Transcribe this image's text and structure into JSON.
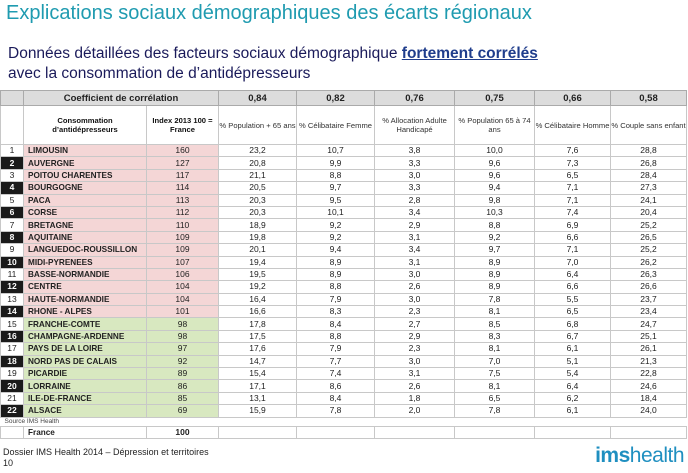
{
  "title": "Explications sociaux démographiques des écarts régionaux",
  "subtitle": {
    "line1_prefix": "Données détaillées des facteurs sociaux démographique ",
    "line1_highlight": "fortement corrélés",
    "line2": "avec la consommation de d’antidépresseurs"
  },
  "table": {
    "coef_label": "Coefficient de corrélation",
    "coefficients": [
      "0,84",
      "0,82",
      "0,76",
      "0,75",
      "0,66",
      "0,58"
    ],
    "header_name": "Consommation d’antidépresseurs",
    "header_index": "Index 2013 100 = France",
    "columns": [
      "% Population + 65 ans",
      "% Célibataire Femme",
      "% Allocation Adulte Handicapé",
      "% Population 65 à 74 ans",
      "% Célibataire Homme",
      "% Couple sans enfant"
    ],
    "rows": [
      {
        "rank": "1",
        "name": "LIMOUSIN",
        "index": "160",
        "vals": [
          "23,2",
          "10,7",
          "3,8",
          "10,0",
          "7,6",
          "28,8"
        ]
      },
      {
        "rank": "2",
        "name": "AUVERGNE",
        "index": "127",
        "vals": [
          "20,8",
          "9,9",
          "3,3",
          "9,6",
          "7,3",
          "26,8"
        ]
      },
      {
        "rank": "3",
        "name": "POITOU CHARENTES",
        "index": "117",
        "vals": [
          "21,1",
          "8,8",
          "3,0",
          "9,6",
          "6,5",
          "28,4"
        ]
      },
      {
        "rank": "4",
        "name": "BOURGOGNE",
        "index": "114",
        "vals": [
          "20,5",
          "9,7",
          "3,3",
          "9,4",
          "7,1",
          "27,3"
        ]
      },
      {
        "rank": "5",
        "name": "PACA",
        "index": "113",
        "vals": [
          "20,3",
          "9,5",
          "2,8",
          "9,8",
          "7,1",
          "24,1"
        ]
      },
      {
        "rank": "6",
        "name": "CORSE",
        "index": "112",
        "vals": [
          "20,3",
          "10,1",
          "3,4",
          "10,3",
          "7,4",
          "20,4"
        ]
      },
      {
        "rank": "7",
        "name": "BRETAGNE",
        "index": "110",
        "vals": [
          "18,9",
          "9,2",
          "2,9",
          "8,8",
          "6,9",
          "25,2"
        ]
      },
      {
        "rank": "8",
        "name": "AQUITAINE",
        "index": "109",
        "vals": [
          "19,8",
          "9,2",
          "3,1",
          "9,2",
          "6,6",
          "26,5"
        ]
      },
      {
        "rank": "9",
        "name": "LANGUEDOC-ROUSSILLON",
        "index": "109",
        "vals": [
          "20,1",
          "9,4",
          "3,4",
          "9,7",
          "7,1",
          "25,2"
        ]
      },
      {
        "rank": "10",
        "name": "MIDI-PYRENEES",
        "index": "107",
        "vals": [
          "19,4",
          "8,9",
          "3,1",
          "8,9",
          "7,0",
          "26,2"
        ]
      },
      {
        "rank": "11",
        "name": "BASSE-NORMANDIE",
        "index": "106",
        "vals": [
          "19,5",
          "8,9",
          "3,0",
          "8,9",
          "6,4",
          "26,3"
        ]
      },
      {
        "rank": "12",
        "name": "CENTRE",
        "index": "104",
        "vals": [
          "19,2",
          "8,8",
          "2,6",
          "8,9",
          "6,6",
          "26,6"
        ]
      },
      {
        "rank": "13",
        "name": "HAUTE-NORMANDIE",
        "index": "104",
        "vals": [
          "16,4",
          "7,9",
          "3,0",
          "7,8",
          "5,5",
          "23,7"
        ]
      },
      {
        "rank": "14",
        "name": "RHONE - ALPES",
        "index": "101",
        "vals": [
          "16,6",
          "8,3",
          "2,3",
          "8,1",
          "6,5",
          "23,4"
        ]
      },
      {
        "rank": "15",
        "name": "FRANCHE-COMTE",
        "index": "98",
        "vals": [
          "17,8",
          "8,4",
          "2,7",
          "8,5",
          "6,8",
          "24,7"
        ]
      },
      {
        "rank": "16",
        "name": "CHAMPAGNE-ARDENNE",
        "index": "98",
        "vals": [
          "17,5",
          "8,8",
          "2,9",
          "8,3",
          "6,7",
          "25,1"
        ]
      },
      {
        "rank": "17",
        "name": "PAYS DE LA LOIRE",
        "index": "97",
        "vals": [
          "17,6",
          "7,9",
          "2,3",
          "8,1",
          "6,1",
          "26,1"
        ]
      },
      {
        "rank": "18",
        "name": "NORD PAS DE CALAIS",
        "index": "92",
        "vals": [
          "14,7",
          "7,7",
          "3,0",
          "7,0",
          "5,1",
          "21,3"
        ]
      },
      {
        "rank": "19",
        "name": "PICARDIE",
        "index": "89",
        "vals": [
          "15,4",
          "7,4",
          "3,1",
          "7,5",
          "5,4",
          "22,8"
        ]
      },
      {
        "rank": "20",
        "name": "LORRAINE",
        "index": "86",
        "vals": [
          "17,1",
          "8,6",
          "2,6",
          "8,1",
          "6,4",
          "24,6"
        ]
      },
      {
        "rank": "21",
        "name": "ILE-DE-FRANCE",
        "index": "85",
        "vals": [
          "13,1",
          "8,4",
          "1,8",
          "6,5",
          "6,2",
          "18,4"
        ]
      },
      {
        "rank": "22",
        "name": "ALSACE",
        "index": "69",
        "vals": [
          "15,9",
          "7,8",
          "2,0",
          "7,8",
          "6,1",
          "24,0"
        ]
      }
    ],
    "source": "Source IMS Health",
    "france_label": "France",
    "france_index": "100"
  },
  "footer": {
    "line1": "Dossier IMS Health 2014 – Dépression et territoires",
    "page": "10"
  },
  "logo": {
    "bold": "ims",
    "rest": "health"
  }
}
